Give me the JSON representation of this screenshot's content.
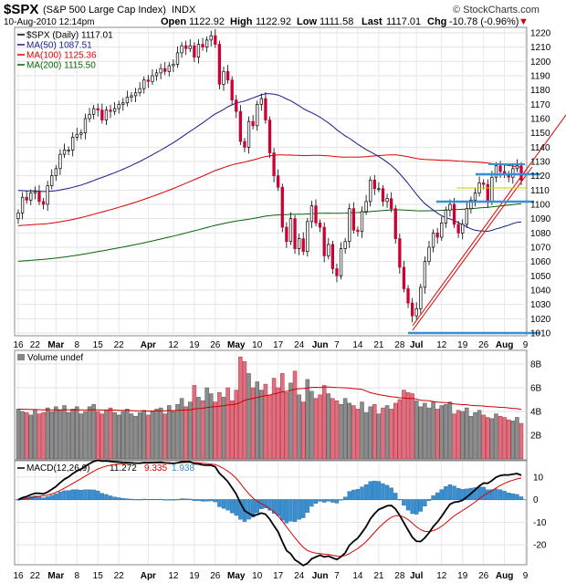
{
  "header": {
    "symbol": "$SPX",
    "name": "(S&P 500 Large Cap Index)",
    "exchange": "INDX",
    "brand": "© StockCharts.com",
    "datetime": "10-Aug-2010 12:14pm",
    "open_label": "Open",
    "open": "1122.92",
    "high_label": "High",
    "high": "1122.92",
    "low_label": "Low",
    "low": "1111.58",
    "last_label": "Last",
    "last": "1117.01",
    "chg_label": "Chg",
    "chg": "-10.78 (-0.96%)",
    "chg_arrow": "▼"
  },
  "legend": [
    {
      "label": "$SPX (Daily) 1117.01",
      "color": "#000000"
    },
    {
      "label": "MA(50) 1087.51",
      "color": "#1a1a8c"
    },
    {
      "label": "MA(100) 1125.36",
      "color": "#dd0000"
    },
    {
      "label": "MA(200) 1115.50",
      "color": "#006600"
    }
  ],
  "volume_label": "Volume undef",
  "macd_legend": {
    "prefix": "MACD(12,26,9)",
    "v1": "11.272",
    "v2": "9.335",
    "v3": "1.938",
    "c1": "#000000",
    "c2": "#dd0000",
    "c3": "#3a8fd0"
  },
  "x_labels": [
    {
      "text": "16",
      "i": 0
    },
    {
      "text": "22",
      "i": 4
    },
    {
      "text": "Mar",
      "i": 9
    },
    {
      "text": "8",
      "i": 14
    },
    {
      "text": "15",
      "i": 19
    },
    {
      "text": "22",
      "i": 24
    },
    {
      "text": "Apr",
      "i": 31
    },
    {
      "text": "12",
      "i": 37
    },
    {
      "text": "19",
      "i": 42
    },
    {
      "text": "26",
      "i": 47
    },
    {
      "text": "May",
      "i": 52
    },
    {
      "text": "10",
      "i": 57
    },
    {
      "text": "17",
      "i": 62
    },
    {
      "text": "24",
      "i": 67
    },
    {
      "text": "Jun",
      "i": 72
    },
    {
      "text": "7",
      "i": 76
    },
    {
      "text": "14",
      "i": 81
    },
    {
      "text": "21",
      "i": 86
    },
    {
      "text": "28",
      "i": 91
    },
    {
      "text": "Jul",
      "i": 95
    },
    {
      "text": "12",
      "i": 101
    },
    {
      "text": "19",
      "i": 106
    },
    {
      "text": "26",
      "i": 111
    },
    {
      "text": "Aug",
      "i": 116
    },
    {
      "text": "9",
      "i": 121
    }
  ],
  "chart_data": {
    "type": "candlestick",
    "price_axis": {
      "min": 1010,
      "max": 1220,
      "ticks": [
        1010,
        1020,
        1030,
        1040,
        1050,
        1060,
        1070,
        1080,
        1090,
        1100,
        1110,
        1120,
        1130,
        1140,
        1150,
        1160,
        1170,
        1180,
        1190,
        1200,
        1210,
        1220
      ]
    },
    "close": [
      1094,
      1105,
      1103,
      1108,
      1109,
      1102,
      1100,
      1113,
      1120,
      1125,
      1135,
      1138,
      1138,
      1147,
      1149,
      1150,
      1160,
      1163,
      1167,
      1166,
      1159,
      1166,
      1165,
      1167,
      1170,
      1171,
      1175,
      1176,
      1178,
      1181,
      1187,
      1186,
      1190,
      1192,
      1195,
      1193,
      1197,
      1198,
      1206,
      1211,
      1209,
      1211,
      1203,
      1212,
      1210,
      1215,
      1218,
      1212,
      1184,
      1193,
      1187,
      1173,
      1165,
      1144,
      1140,
      1158,
      1155,
      1170,
      1174,
      1159,
      1136,
      1120,
      1112,
      1084,
      1074,
      1090,
      1069,
      1076,
      1067,
      1088,
      1099,
      1087,
      1084,
      1064,
      1072,
      1055,
      1050,
      1069,
      1074,
      1097,
      1082,
      1081,
      1095,
      1102,
      1117,
      1111,
      1111,
      1102,
      1104,
      1097,
      1076,
      1056,
      1041,
      1031,
      1022,
      1027,
      1042,
      1060,
      1070,
      1080,
      1077,
      1087,
      1096,
      1100,
      1086,
      1080,
      1086,
      1097,
      1103,
      1108,
      1115,
      1114,
      1102,
      1119,
      1127,
      1123,
      1121,
      1119,
      1125,
      1127,
      1117
    ],
    "open_offset_rule": "open = previous close",
    "volume_axis": {
      "min": 0,
      "max": 9,
      "ticks": [
        {
          "v": 2,
          "label": "2B"
        },
        {
          "v": 4,
          "label": "4B"
        },
        {
          "v": 6,
          "label": "6B"
        },
        {
          "v": 8,
          "label": "8B"
        }
      ]
    },
    "volume": [
      4.2,
      4.0,
      3.9,
      3.7,
      4.1,
      3.8,
      3.9,
      4.3,
      4.0,
      4.4,
      4.1,
      4.5,
      3.9,
      4.2,
      4.4,
      3.8,
      4.0,
      4.4,
      4.6,
      4.0,
      3.8,
      4.1,
      4.3,
      3.9,
      3.7,
      4.0,
      4.2,
      3.8,
      3.6,
      3.9,
      4.1,
      3.7,
      4.0,
      4.2,
      4.3,
      3.8,
      4.5,
      4.0,
      4.6,
      5.1,
      4.4,
      4.8,
      6.2,
      5.2,
      4.9,
      6.0,
      5.5,
      4.8,
      5.6,
      5.2,
      6.0,
      4.9,
      5.8,
      8.6,
      8.2,
      7.2,
      6.0,
      6.5,
      5.8,
      6.3,
      5.4,
      6.8,
      6.0,
      7.2,
      5.6,
      6.4,
      7.4,
      5.4,
      4.8,
      6.7,
      5.7,
      5.1,
      5.4,
      6.2,
      5.5,
      5.1,
      4.9,
      4.6,
      5.1,
      4.7,
      4.5,
      4.2,
      4.8,
      3.9,
      4.4,
      4.6,
      3.8,
      4.3,
      4.5,
      4.2,
      4.7,
      5.0,
      5.8,
      5.6,
      5.5,
      4.9,
      4.4,
      4.7,
      4.3,
      4.8,
      4.2,
      4.5,
      4.6,
      4.8,
      3.8,
      4.1,
      4.0,
      4.3,
      3.6,
      3.9,
      4.1,
      3.7,
      3.5,
      3.4,
      3.8,
      3.6,
      3.5,
      3.3,
      3.2,
      3.5,
      3.0
    ],
    "macd_axis": {
      "min": -28,
      "max": 16,
      "ticks": [
        -20,
        -10,
        0,
        10
      ]
    },
    "indicators": [
      "MA(50)",
      "MA(100)",
      "MA(200)",
      "MACD(12,26,9)",
      "Signal",
      "Histogram"
    ]
  }
}
